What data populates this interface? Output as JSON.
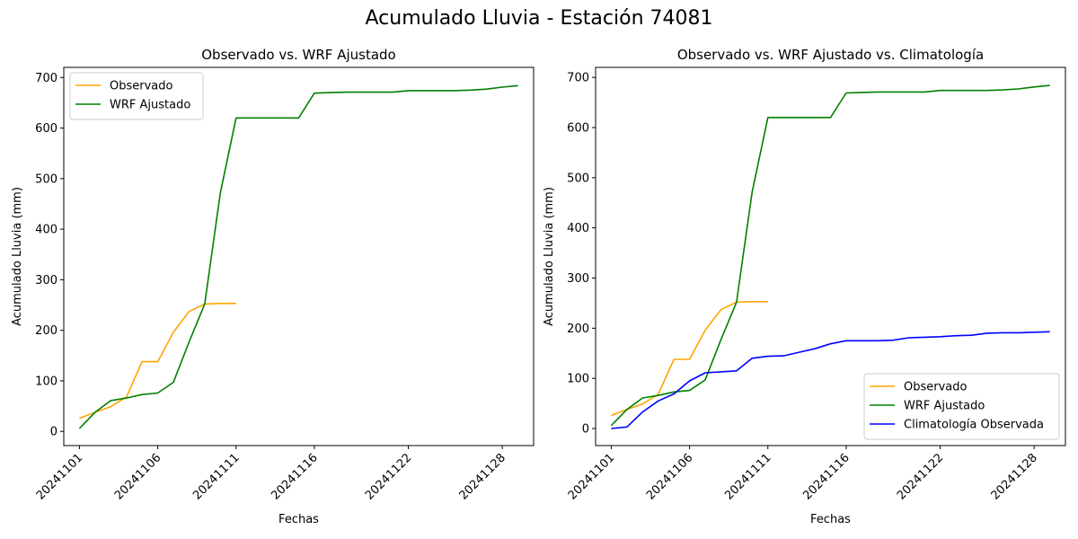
{
  "figure": {
    "suptitle": "Acumulado Lluvia - Estación 74081"
  },
  "colors": {
    "observado": "#ffa500",
    "wrf": "#008000",
    "clima": "#0000ff"
  },
  "chart_data": [
    {
      "type": "line",
      "title": "Observado vs. WRF Ajustado",
      "xlabel": "Fechas",
      "ylabel": "Acumulado Lluvia (mm)",
      "xticks": [
        "20241101",
        "20241106",
        "20241111",
        "20241116",
        "20241122",
        "20241128"
      ],
      "xlim": [
        "20241031",
        "20241130"
      ],
      "ylim": [
        -28,
        720
      ],
      "yticks": [
        0,
        100,
        200,
        300,
        400,
        500,
        600,
        700
      ],
      "grid": false,
      "legend": "top-left",
      "series": [
        {
          "name": "Observado",
          "color": "#ffa500",
          "x": [
            "20241101",
            "20241102",
            "20241103",
            "20241104",
            "20241105",
            "20241106",
            "20241107",
            "20241108",
            "20241109",
            "20241110",
            "20241111"
          ],
          "y": [
            26,
            38,
            49,
            68,
            138,
            138,
            196,
            237,
            252,
            253,
            253
          ]
        },
        {
          "name": "WRF Ajustado",
          "color": "#008000",
          "x": [
            "20241101",
            "20241102",
            "20241103",
            "20241104",
            "20241105",
            "20241106",
            "20241107",
            "20241108",
            "20241109",
            "20241110",
            "20241111",
            "20241112",
            "20241113",
            "20241114",
            "20241115",
            "20241116",
            "20241117",
            "20241118",
            "20241119",
            "20241120",
            "20241121",
            "20241122",
            "20241123",
            "20241124",
            "20241125",
            "20241126",
            "20241127",
            "20241128",
            "20241129"
          ],
          "y": [
            6,
            38,
            61,
            66,
            73,
            76,
            97,
            177,
            252,
            472,
            620,
            620,
            620,
            620,
            620,
            669,
            670,
            671,
            671,
            671,
            671,
            674,
            674,
            674,
            674,
            675,
            677,
            681,
            684
          ]
        }
      ]
    },
    {
      "type": "line",
      "title": "Observado vs. WRF Ajustado vs. Climatología",
      "xlabel": "Fechas",
      "ylabel": "Acumulado Lluvia (mm)",
      "xticks": [
        "20241101",
        "20241106",
        "20241111",
        "20241116",
        "20241122",
        "20241128"
      ],
      "xlim": [
        "20241031",
        "20241130"
      ],
      "ylim": [
        -34,
        720
      ],
      "yticks": [
        0,
        100,
        200,
        300,
        400,
        500,
        600,
        700
      ],
      "grid": false,
      "legend": "bottom-right",
      "series": [
        {
          "name": "Observado",
          "color": "#ffa500",
          "x": [
            "20241101",
            "20241102",
            "20241103",
            "20241104",
            "20241105",
            "20241106",
            "20241107",
            "20241108",
            "20241109",
            "20241110",
            "20241111"
          ],
          "y": [
            26,
            38,
            49,
            68,
            138,
            138,
            196,
            237,
            252,
            253,
            253
          ]
        },
        {
          "name": "WRF Ajustado",
          "color": "#008000",
          "x": [
            "20241101",
            "20241102",
            "20241103",
            "20241104",
            "20241105",
            "20241106",
            "20241107",
            "20241108",
            "20241109",
            "20241110",
            "20241111",
            "20241112",
            "20241113",
            "20241114",
            "20241115",
            "20241116",
            "20241117",
            "20241118",
            "20241119",
            "20241120",
            "20241121",
            "20241122",
            "20241123",
            "20241124",
            "20241125",
            "20241126",
            "20241127",
            "20241128",
            "20241129"
          ],
          "y": [
            6,
            38,
            61,
            66,
            73,
            76,
            97,
            177,
            252,
            472,
            620,
            620,
            620,
            620,
            620,
            669,
            670,
            671,
            671,
            671,
            671,
            674,
            674,
            674,
            674,
            675,
            677,
            681,
            684
          ]
        },
        {
          "name": "Climatología Observada",
          "color": "#0000ff",
          "x": [
            "20241101",
            "20241102",
            "20241103",
            "20241104",
            "20241105",
            "20241106",
            "20241107",
            "20241108",
            "20241109",
            "20241110",
            "20241111",
            "20241112",
            "20241113",
            "20241114",
            "20241115",
            "20241116",
            "20241117",
            "20241118",
            "20241119",
            "20241120",
            "20241121",
            "20241122",
            "20241123",
            "20241124",
            "20241125",
            "20241126",
            "20241127",
            "20241128",
            "20241129"
          ],
          "y": [
            0,
            3,
            33,
            55,
            69,
            95,
            111,
            113,
            115,
            140,
            144,
            145,
            152,
            159,
            169,
            175,
            175,
            175,
            176,
            181,
            182,
            183,
            185,
            186,
            190,
            191,
            191,
            192,
            193
          ]
        }
      ]
    }
  ]
}
